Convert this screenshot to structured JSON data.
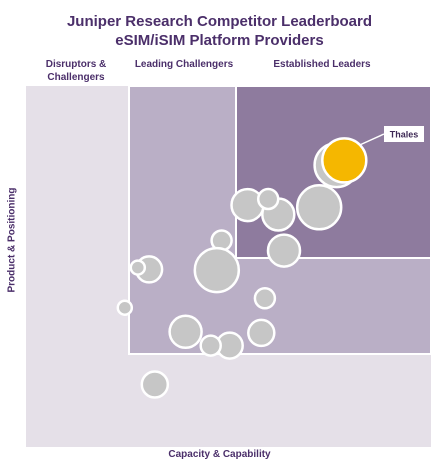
{
  "chart_data": {
    "type": "scatter",
    "title": "Juniper Research Competitor Leaderboard",
    "subtitle": "eSIM/iSIM Platform Providers",
    "xlabel": "Capacity & Capability",
    "ylabel": "Product & Positioning",
    "xlim": [
      0,
      100
    ],
    "ylim": [
      0,
      100
    ],
    "zones": [
      {
        "label": "Disruptors & Challengers",
        "color": "#e5e0e8"
      },
      {
        "label": "Leading Challengers",
        "color": "#baafc6"
      },
      {
        "label": "Established Leaders",
        "color": "#8e7b9e"
      }
    ],
    "highlight_color": "#f5b700",
    "bubble_color": "#c6c6c6",
    "points": [
      {
        "x": 78.6,
        "y": 79.4,
        "r": 3,
        "label": "Thales",
        "highlight": true
      },
      {
        "x": 76.7,
        "y": 78.1,
        "r": 3,
        "label": "",
        "highlight": false
      },
      {
        "x": 72.4,
        "y": 66.4,
        "r": 3,
        "label": "",
        "highlight": false
      },
      {
        "x": 54.7,
        "y": 67.0,
        "r": 2,
        "label": "",
        "highlight": false
      },
      {
        "x": 62.3,
        "y": 64.4,
        "r": 2,
        "label": "",
        "highlight": false
      },
      {
        "x": 59.8,
        "y": 68.7,
        "r": 1,
        "label": "",
        "highlight": false
      },
      {
        "x": 63.7,
        "y": 54.4,
        "r": 2,
        "label": "",
        "highlight": false
      },
      {
        "x": 48.3,
        "y": 57.2,
        "r": 1,
        "label": "",
        "highlight": false
      },
      {
        "x": 47.1,
        "y": 49.0,
        "r": 3,
        "label": "",
        "highlight": false
      },
      {
        "x": 30.4,
        "y": 49.2,
        "r": 1.5,
        "label": "",
        "highlight": false
      },
      {
        "x": 27.6,
        "y": 49.7,
        "r": 0.5,
        "label": "",
        "highlight": false
      },
      {
        "x": 59.0,
        "y": 41.2,
        "r": 1,
        "label": "",
        "highlight": false
      },
      {
        "x": 39.4,
        "y": 31.9,
        "r": 2,
        "label": "",
        "highlight": false
      },
      {
        "x": 58.1,
        "y": 31.6,
        "r": 1.5,
        "label": "",
        "highlight": false
      },
      {
        "x": 50.3,
        "y": 28.1,
        "r": 1.5,
        "label": "",
        "highlight": false
      },
      {
        "x": 45.6,
        "y": 28.1,
        "r": 1,
        "label": "",
        "highlight": false
      },
      {
        "x": 24.4,
        "y": 38.6,
        "r": 0.5,
        "label": "",
        "highlight": false
      },
      {
        "x": 31.8,
        "y": 17.3,
        "r": 1.5,
        "label": "",
        "highlight": false
      }
    ]
  }
}
